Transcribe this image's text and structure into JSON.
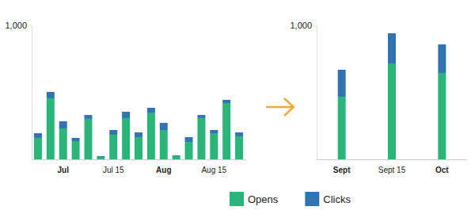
{
  "chart_data": [
    {
      "type": "bar",
      "stacked": true,
      "grid": false,
      "legend": "bottom",
      "categories": [
        null,
        null,
        "Jul",
        null,
        null,
        null,
        "Jul 15",
        null,
        null,
        null,
        "Aug",
        null,
        null,
        null,
        "Aug 15",
        null,
        null
      ],
      "ylim": [
        0,
        1000
      ],
      "yticks": [
        {
          "value": 1000,
          "label": "1,000"
        }
      ],
      "series": [
        {
          "name": "Opens",
          "color": "#2bb57b",
          "values": [
            160,
            456,
            231,
            136,
            302,
            18,
            183,
            308,
            166,
            349,
            219,
            24,
            130,
            308,
            195,
            420,
            172
          ]
        },
        {
          "name": "Clicks",
          "color": "#3273b3",
          "values": [
            35,
            47,
            53,
            24,
            29,
            6,
            36,
            47,
            35,
            36,
            53,
            6,
            36,
            23,
            24,
            24,
            29
          ]
        }
      ]
    },
    {
      "type": "bar",
      "stacked": true,
      "grid": false,
      "legend": "bottom",
      "categories": [
        "Sept",
        "Sept 15",
        "Oct"
      ],
      "ylim": [
        0,
        1000
      ],
      "yticks": [
        {
          "value": 1000,
          "label": "1,000"
        }
      ],
      "series": [
        {
          "name": "Opens",
          "color": "#2bb57b",
          "values": [
            467,
            716,
            645
          ]
        },
        {
          "name": "Clicks",
          "color": "#3273b3",
          "values": [
            202,
            225,
            213
          ]
        }
      ]
    }
  ]
}
